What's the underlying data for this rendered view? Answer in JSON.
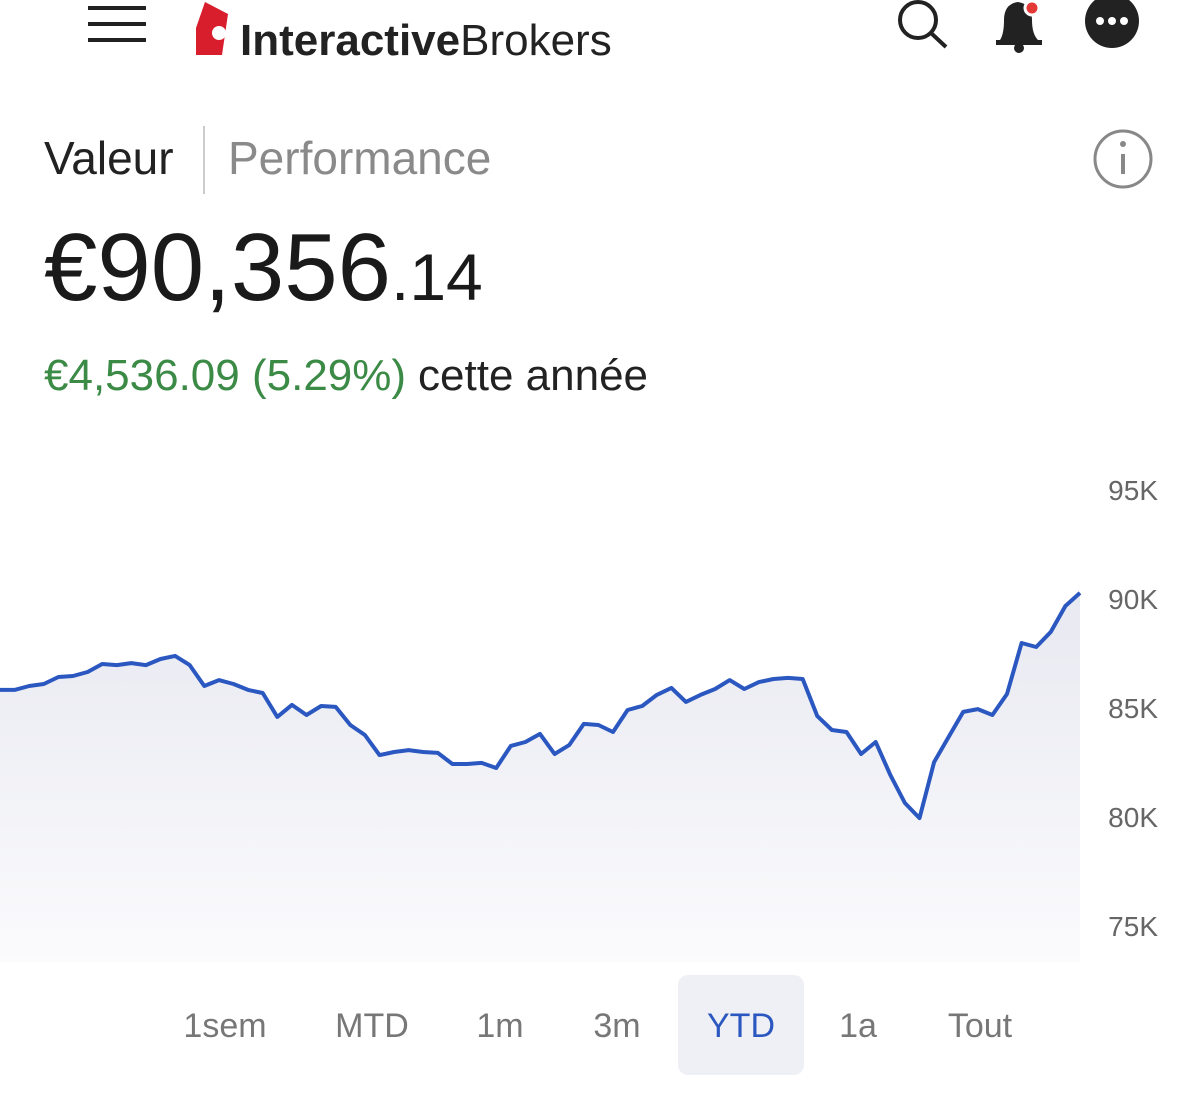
{
  "header": {
    "logo_bold": "Interactive",
    "logo_regular": "Brokers"
  },
  "tabs": [
    "Valeur",
    "Performance"
  ],
  "balance": {
    "main": "€90,356",
    "decimals": ".14"
  },
  "change": {
    "amount": "€4,536.09 (5.29%)",
    "period": "cette année"
  },
  "ranges": [
    "1sem",
    "MTD",
    "1m",
    "3m",
    "YTD",
    "1a",
    "Tout"
  ],
  "selected_range": "YTD",
  "chart_data": {
    "type": "line",
    "color": "#2b57c0",
    "values": [
      85830,
      85830,
      86010,
      86100,
      86420,
      86470,
      86650,
      87020,
      86970,
      87060,
      86970,
      87250,
      87390,
      86970,
      86010,
      86280,
      86100,
      85830,
      85690,
      84590,
      85140,
      84680,
      85090,
      85050,
      84220,
      83760,
      82840,
      82980,
      83070,
      82980,
      82940,
      82430,
      82430,
      82480,
      82250,
      83260,
      83440,
      83810,
      82890,
      83300,
      84270,
      84220,
      83900,
      84910,
      85090,
      85600,
      85920,
      85280,
      85600,
      85870,
      86280,
      85870,
      86190,
      86330,
      86380,
      86330,
      84630,
      83990,
      83900,
      82890,
      83440,
      81930,
      80640,
      79950,
      82520,
      83670,
      84820,
      84950,
      84680,
      85640,
      87980,
      87800,
      88490,
      89680,
      90280
    ],
    "ylim": [
      75000,
      95000
    ],
    "yticks": [
      {
        "value": 95000,
        "label": "95K"
      },
      {
        "value": 90000,
        "label": "90K"
      },
      {
        "value": 85000,
        "label": "85K"
      },
      {
        "value": 80000,
        "label": "80K"
      },
      {
        "value": 75000,
        "label": "75K"
      }
    ]
  }
}
